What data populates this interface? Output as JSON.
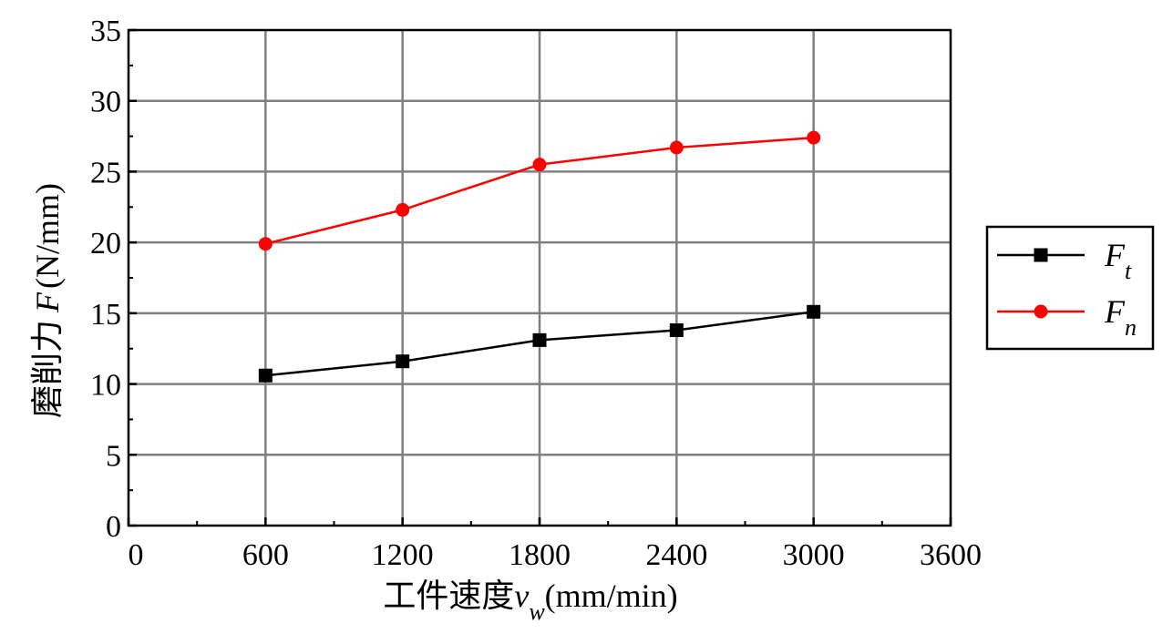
{
  "chart_data": {
    "type": "line",
    "xlabel": "工件速度",
    "xlabel_symbol": "v",
    "xlabel_subscript": "w",
    "xlabel_unit": "(mm/min)",
    "ylabel": "磨削力",
    "ylabel_symbol": "F",
    "ylabel_unit": "(N/mm)",
    "xlim": [
      0,
      3600
    ],
    "ylim": [
      0,
      35
    ],
    "x_ticks": [
      "0",
      "600",
      "1200",
      "1800",
      "2400",
      "3000",
      "3600"
    ],
    "y_ticks": [
      "0",
      "5",
      "10",
      "15",
      "20",
      "25",
      "30",
      "35"
    ],
    "grid": true,
    "legend_position": "right",
    "x": [
      600,
      1200,
      1800,
      2400,
      3000
    ],
    "series": [
      {
        "name": "F",
        "name_subscript": "t",
        "marker": "square",
        "color": "#000000",
        "values": [
          10.6,
          11.6,
          13.1,
          13.8,
          15.1
        ]
      },
      {
        "name": "F",
        "name_subscript": "n",
        "marker": "circle",
        "color": "#ff0000",
        "values": [
          19.9,
          22.3,
          25.5,
          26.7,
          27.4
        ]
      }
    ]
  }
}
